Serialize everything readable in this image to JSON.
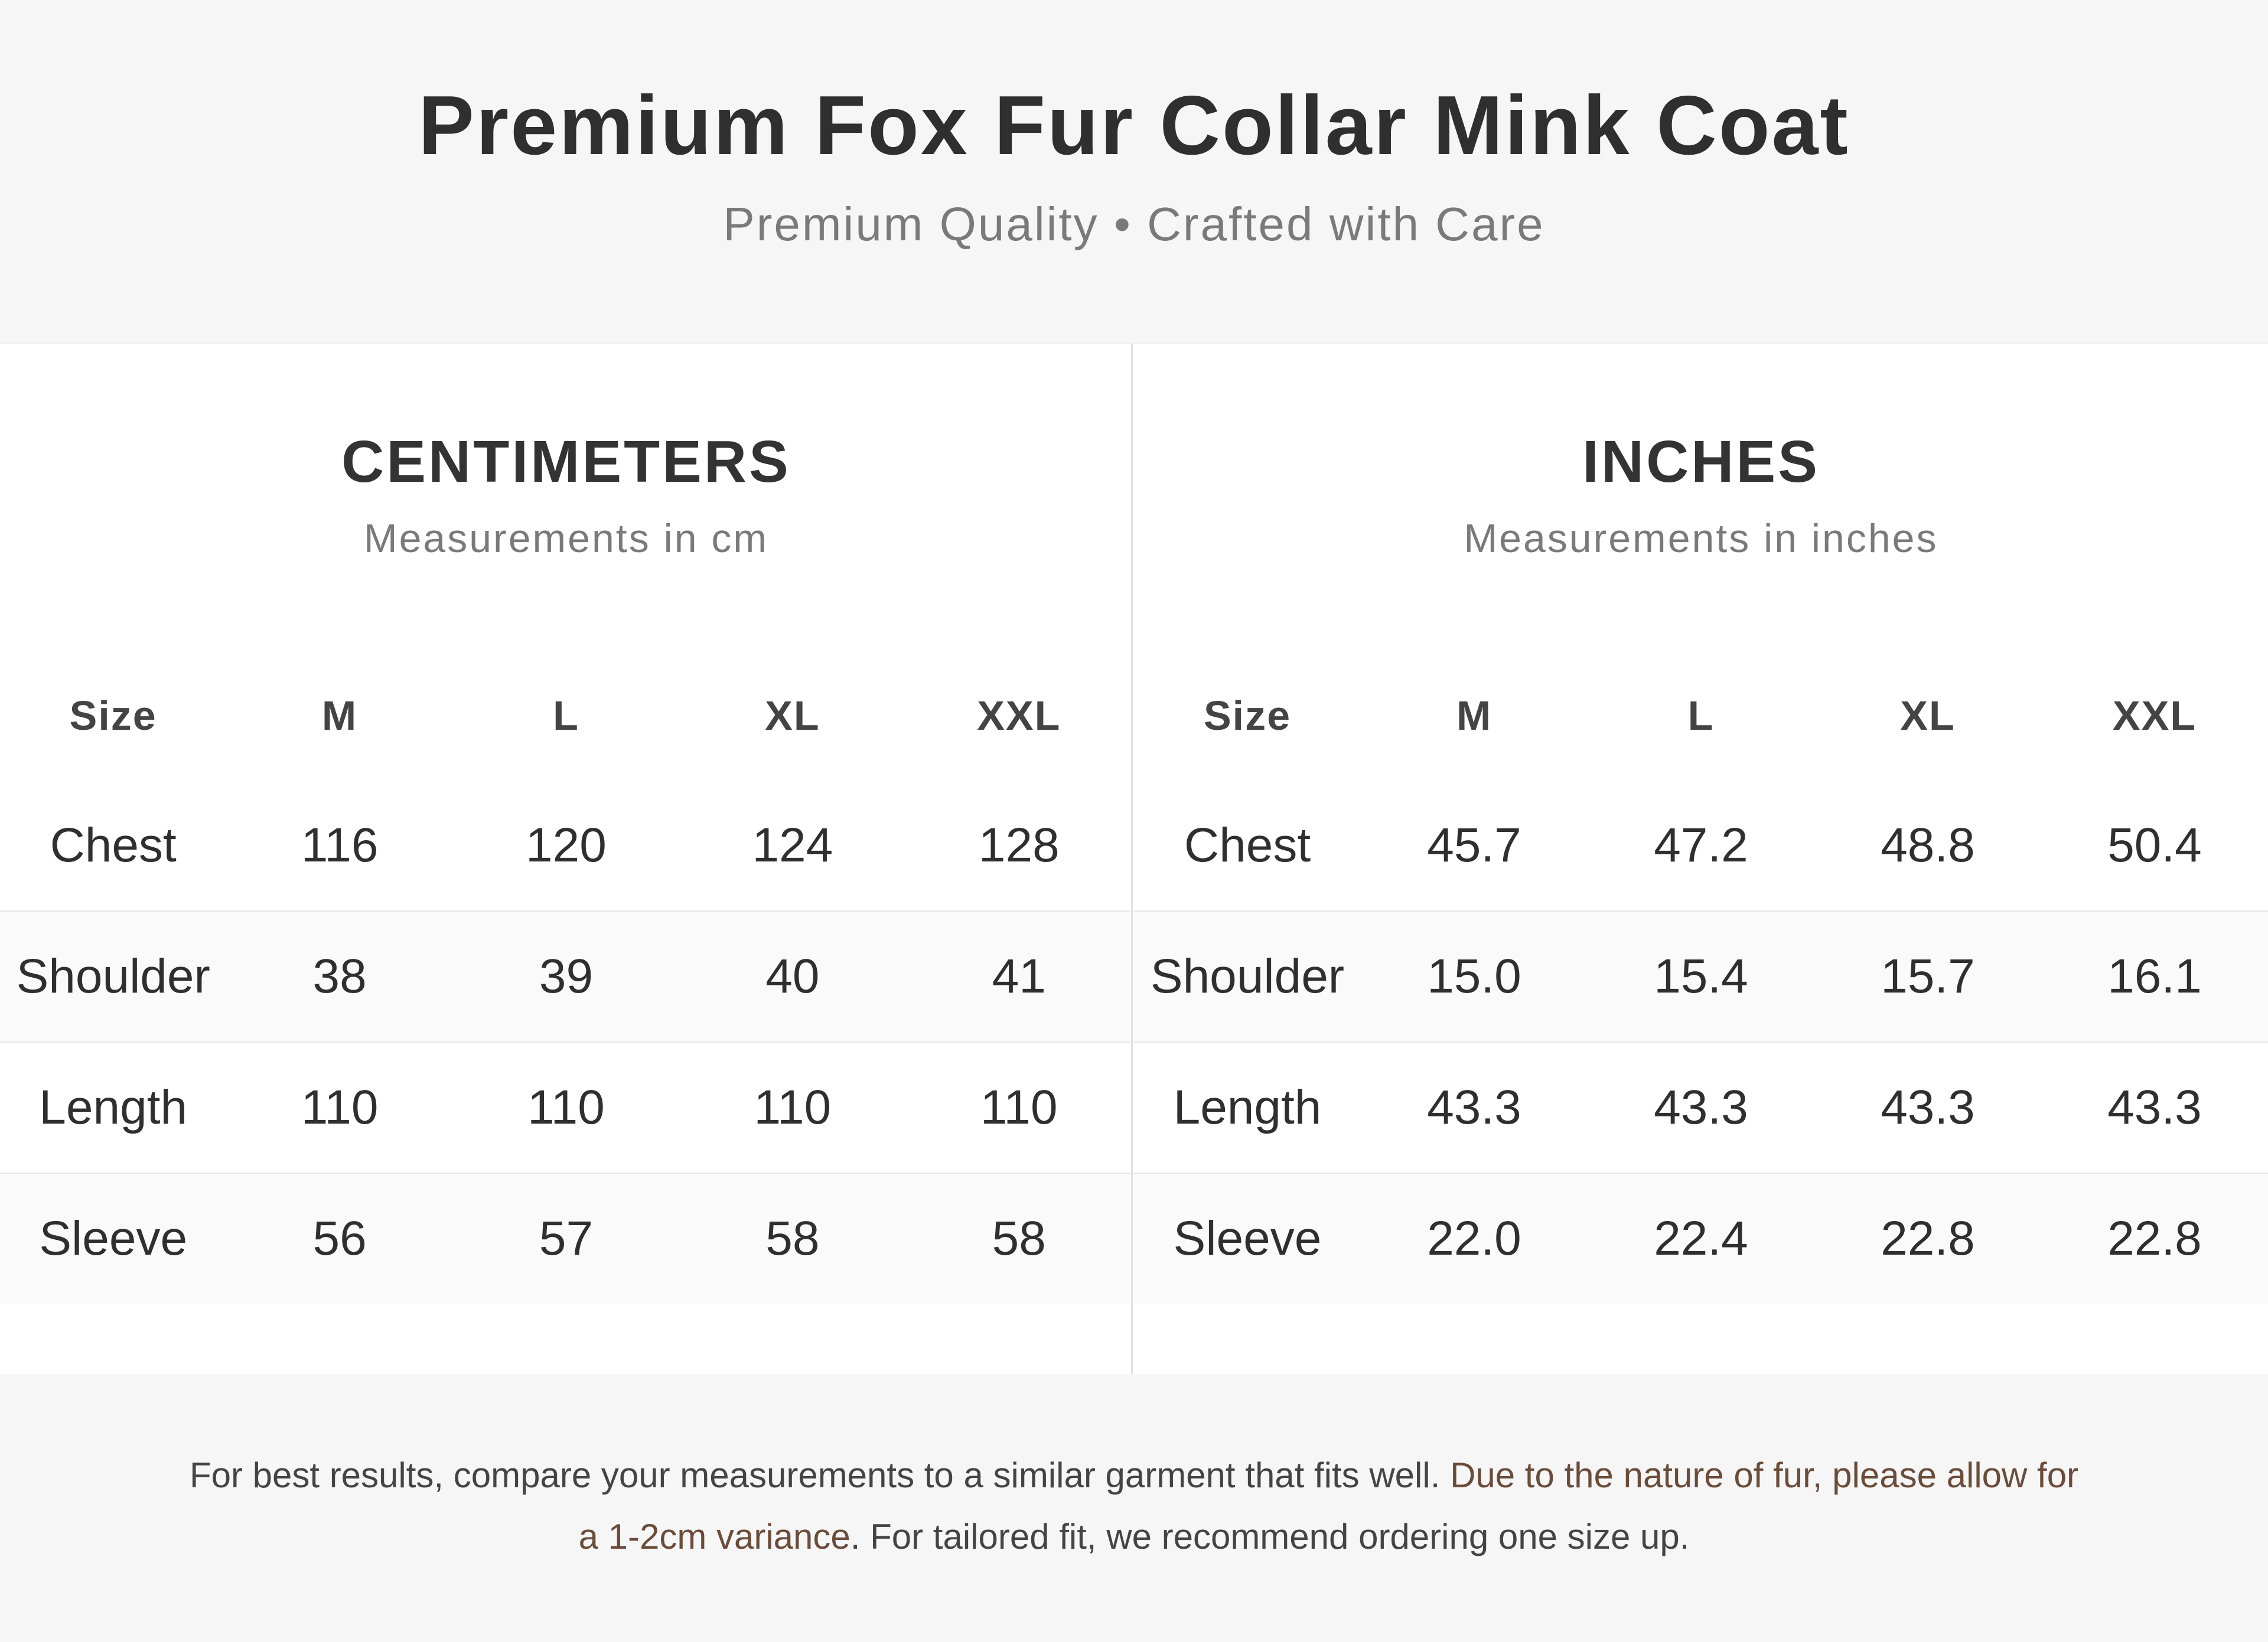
{
  "header": {
    "title": "Premium Fox Fur Collar Mink Coat",
    "subtitle": "Premium Quality • Crafted with Care"
  },
  "centimeters": {
    "title": "CENTIMETERS",
    "subtitle": "Measurements in cm",
    "columns": [
      "Size",
      "M",
      "L",
      "XL",
      "XXL"
    ],
    "rows": [
      {
        "label": "Chest",
        "values": [
          "116",
          "120",
          "124",
          "128"
        ]
      },
      {
        "label": "Shoulder",
        "values": [
          "38",
          "39",
          "40",
          "41"
        ]
      },
      {
        "label": "Length",
        "values": [
          "110",
          "110",
          "110",
          "110"
        ]
      },
      {
        "label": "Sleeve",
        "values": [
          "56",
          "57",
          "58",
          "58"
        ]
      }
    ]
  },
  "inches": {
    "title": "INCHES",
    "subtitle": "Measurements in inches",
    "columns": [
      "Size",
      "M",
      "L",
      "XL",
      "XXL"
    ],
    "rows": [
      {
        "label": "Chest",
        "values": [
          "45.7",
          "47.2",
          "48.8",
          "50.4"
        ]
      },
      {
        "label": "Shoulder",
        "values": [
          "15.0",
          "15.4",
          "15.7",
          "16.1"
        ]
      },
      {
        "label": "Length",
        "values": [
          "43.3",
          "43.3",
          "43.3",
          "43.3"
        ]
      },
      {
        "label": "Sleeve",
        "values": [
          "22.0",
          "22.4",
          "22.8",
          "22.8"
        ]
      }
    ]
  },
  "footer": {
    "part1": "For best results, compare your measurements to a similar garment that fits well. ",
    "highlight": "Due to the nature of fur, please allow for a 1-2cm variance",
    "part2": ". For tailored fit, we recommend ordering one size up."
  },
  "colors": {
    "background": "#f6f6f6",
    "panel": "#ffffff",
    "title": "#2f2f2f",
    "muted": "#7a7a7a",
    "accent": "#6b4c3b"
  }
}
